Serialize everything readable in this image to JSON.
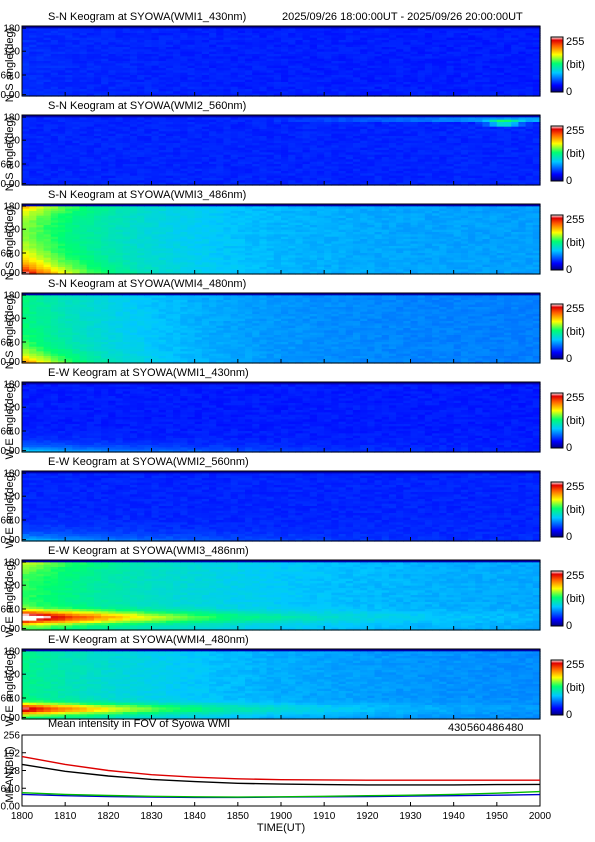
{
  "header": {
    "time_range": "2025/09/26 18:00:00UT - 2025/09/26 20:00:00UT"
  },
  "colorbar": {
    "max_label": "255",
    "unit_label": "(bit)",
    "min_label": "0"
  },
  "keograms": [
    {
      "title": "S-N Keogram at SYOWA(WMI1_430nm)",
      "ylabel": "N-S angle(deg)",
      "yticks": [
        "180",
        "120",
        "60.0",
        "0.00"
      ],
      "profile": "sn430"
    },
    {
      "title": "S-N Keogram at SYOWA(WMI2_560nm)",
      "ylabel": "N-S angle(deg)",
      "yticks": [
        "180",
        "120",
        "60.0",
        "0.00"
      ],
      "profile": "sn560"
    },
    {
      "title": "S-N Keogram at SYOWA(WMI3_486nm)",
      "ylabel": "N-S angle(deg)",
      "yticks": [
        "180",
        "120",
        "60.0",
        "0.00"
      ],
      "profile": "sn486"
    },
    {
      "title": "S-N Keogram at SYOWA(WMI4_480nm)",
      "ylabel": "N-S angle(deg)",
      "yticks": [
        "180",
        "120",
        "60.0",
        "0.00"
      ],
      "profile": "sn480"
    },
    {
      "title": "E-W Keogram at SYOWA(WMI1_430nm)",
      "ylabel": "W-E angle(deg)",
      "yticks": [
        "180",
        "120",
        "60.0",
        "0.00"
      ],
      "profile": "ew430"
    },
    {
      "title": "E-W Keogram at SYOWA(WMI2_560nm)",
      "ylabel": "W-E angle(deg)",
      "yticks": [
        "180",
        "120",
        "60.0",
        "0.00"
      ],
      "profile": "ew560"
    },
    {
      "title": "E-W Keogram at SYOWA(WMI3_486nm)",
      "ylabel": "W-E angle(deg)",
      "yticks": [
        "180",
        "120",
        "60.0",
        "0.00"
      ],
      "profile": "ew486"
    },
    {
      "title": "E-W Keogram at SYOWA(WMI4_480nm)",
      "ylabel": "W-E angle(deg)",
      "yticks": [
        "180",
        "120",
        "60.0",
        "0.00"
      ],
      "profile": "ew480"
    }
  ],
  "mean_panel": {
    "title": "Mean intensity in FOV of Syowa WMI",
    "legend": [
      {
        "label": "430",
        "color": "#0000cc"
      },
      {
        "label": "560",
        "color": "#00bb00"
      },
      {
        "label": "486",
        "color": "#dd0000"
      },
      {
        "label": "480",
        "color": "#000000"
      }
    ],
    "ylabel": "MEAN(BIT)",
    "yticks": [
      "256",
      "192",
      "128",
      "64.0",
      "0.00"
    ],
    "xlabel": "TIME(UT)",
    "xticks": [
      "1800",
      "1810",
      "1820",
      "1830",
      "1840",
      "1850",
      "1900",
      "1910",
      "1920",
      "1930",
      "1940",
      "1950",
      "2000"
    ]
  },
  "chart_data": {
    "type": "line",
    "title": "Mean intensity in FOV of Syowa WMI",
    "xlabel": "TIME(UT)",
    "ylabel": "MEAN(BIT)",
    "ylim": [
      0,
      256
    ],
    "x": [
      "1800",
      "1810",
      "1820",
      "1830",
      "1840",
      "1850",
      "1900",
      "1910",
      "1920",
      "1930",
      "1940",
      "1950",
      "2000"
    ],
    "series": [
      {
        "name": "430",
        "color": "#0000cc",
        "values": [
          42,
          37,
          34,
          32,
          31,
          31,
          32,
          33,
          34,
          36,
          37,
          39,
          41
        ]
      },
      {
        "name": "560",
        "color": "#00bb00",
        "values": [
          48,
          42,
          38,
          35,
          33,
          32,
          33,
          35,
          37,
          39,
          42,
          46,
          52
        ]
      },
      {
        "name": "486",
        "color": "#dd0000",
        "values": [
          178,
          150,
          128,
          113,
          104,
          98,
          95,
          94,
          93,
          93,
          93,
          93,
          93
        ]
      },
      {
        "name": "480",
        "color": "#000000",
        "values": [
          150,
          125,
          108,
          96,
          88,
          82,
          79,
          77,
          76,
          76,
          76,
          77,
          78
        ]
      }
    ],
    "grid": false
  }
}
